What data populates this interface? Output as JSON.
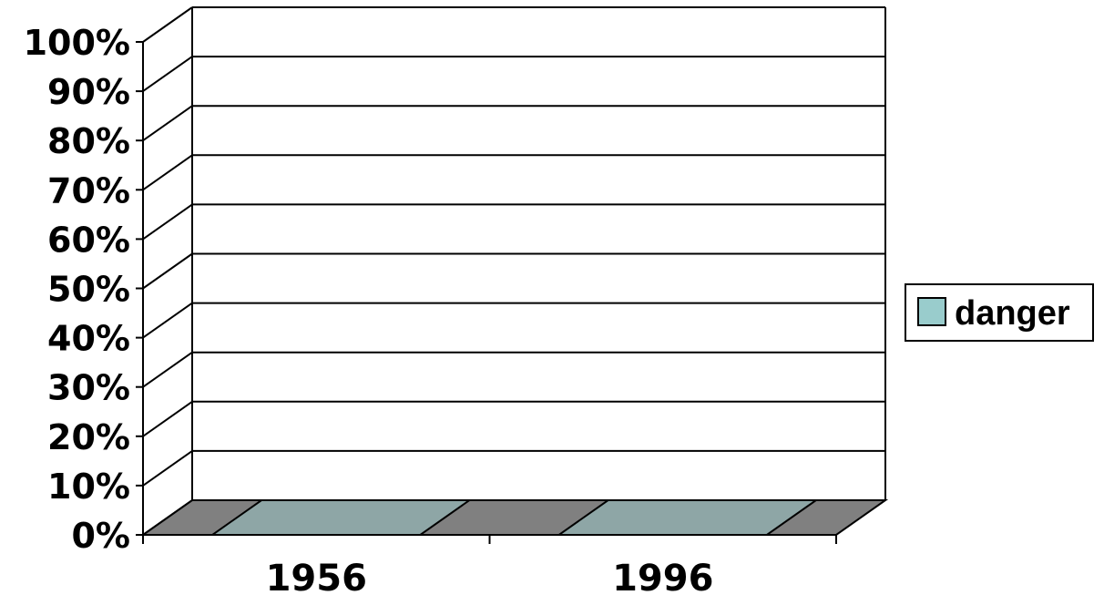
{
  "chart_data": {
    "type": "bar",
    "categories": [
      "1956",
      "1996"
    ],
    "series": [
      {
        "name": "danger",
        "values": [
          0,
          0
        ],
        "color": "#99CCCC"
      }
    ],
    "ylim": [
      0,
      100
    ],
    "yticks": [
      "0%",
      "10%",
      "20%",
      "30%",
      "40%",
      "50%",
      "60%",
      "70%",
      "80%",
      "90%",
      "100%"
    ],
    "grid": true,
    "legend_position": "right",
    "floor_color": "#808080",
    "base_color": "#8EA6A6",
    "three_d": true
  }
}
